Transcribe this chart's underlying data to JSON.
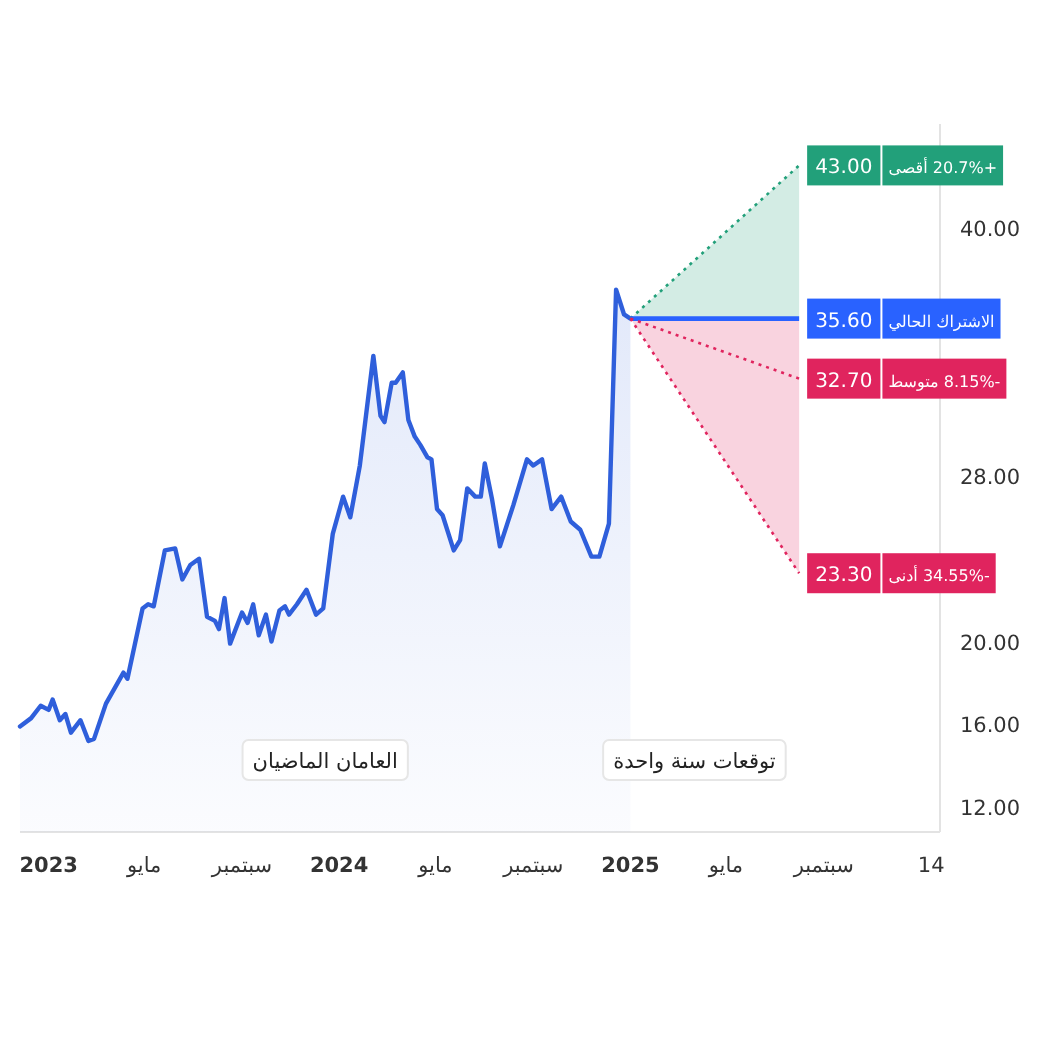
{
  "chart_data": {
    "type": "area",
    "xlim": [
      "2022-11-26",
      "2026-01-25"
    ],
    "ylim": [
      10.8,
      45
    ],
    "xticks": [
      {
        "value": "2023-01-01",
        "label": "2023"
      },
      {
        "value": "2023-05-01",
        "label": "مايو"
      },
      {
        "value": "2023-09-01",
        "label": "سبتمبر"
      },
      {
        "value": "2024-01-01",
        "label": "2024"
      },
      {
        "value": "2024-05-01",
        "label": "مايو"
      },
      {
        "value": "2024-09-01",
        "label": "سبتمبر"
      },
      {
        "value": "2025-01-01",
        "label": "2025"
      },
      {
        "value": "2025-05-01",
        "label": "مايو"
      },
      {
        "value": "2025-09-01",
        "label": "سبتمبر"
      },
      {
        "value": "2026-01-14",
        "label": "14"
      }
    ],
    "yticks": [
      {
        "value": 12,
        "label": "12.00"
      },
      {
        "value": 16,
        "label": "16.00"
      },
      {
        "value": 20,
        "label": "20.00"
      },
      {
        "value": 28,
        "label": "28.00"
      },
      {
        "value": 40,
        "label": "40.00"
      }
    ],
    "grid": false,
    "legend": "right",
    "annotations": [
      "العامان الماضيان",
      "توقعات سنة واحدة"
    ],
    "series": [
      {
        "color": "#2f5fdb",
        "x": [
          "2022-11-26",
          "2022-12-10",
          "2022-12-22",
          "2023-01-01",
          "2023-01-06",
          "2023-01-15",
          "2023-01-22",
          "2023-01-29",
          "2023-02-10",
          "2023-02-20",
          "2023-02-27",
          "2023-03-14",
          "2023-04-05",
          "2023-04-10",
          "2023-04-29",
          "2023-05-06",
          "2023-05-13",
          "2023-05-27",
          "2023-06-09",
          "2023-06-18",
          "2023-06-28",
          "2023-07-09",
          "2023-07-19",
          "2023-07-29",
          "2023-08-03",
          "2023-08-10",
          "2023-08-17",
          "2023-09-01",
          "2023-09-08",
          "2023-09-15",
          "2023-09-22",
          "2023-10-01",
          "2023-10-08",
          "2023-10-18",
          "2023-10-25",
          "2023-10-30",
          "2023-11-09",
          "2023-11-21",
          "2023-12-03",
          "2023-12-12",
          "2023-12-24",
          "2024-01-06",
          "2024-01-15",
          "2024-01-27",
          "2024-02-13",
          "2024-02-22",
          "2024-02-27",
          "2024-03-07",
          "2024-03-12",
          "2024-03-21",
          "2024-03-28",
          "2024-04-05",
          "2024-04-12",
          "2024-04-21",
          "2024-04-26",
          "2024-05-03",
          "2024-05-10",
          "2024-05-24",
          "2024-06-01",
          "2024-06-10",
          "2024-06-20",
          "2024-06-27",
          "2024-07-02",
          "2024-07-11",
          "2024-07-21",
          "2024-08-07",
          "2024-08-24",
          "2024-09-01",
          "2024-09-12",
          "2024-09-24",
          "2024-10-06",
          "2024-10-18",
          "2024-10-30",
          "2024-11-13",
          "2024-11-23",
          "2024-12-05",
          "2024-12-14",
          "2024-12-24",
          "2025-01-01"
        ],
        "values": [
          15.9,
          16.3,
          16.9,
          16.7,
          17.2,
          16.2,
          16.5,
          15.6,
          16.2,
          15.2,
          15.3,
          17.0,
          18.5,
          18.2,
          21.6,
          21.8,
          21.7,
          24.4,
          24.5,
          23.0,
          23.7,
          24.0,
          21.2,
          21.0,
          20.6,
          22.1,
          19.9,
          21.4,
          20.9,
          21.8,
          20.3,
          21.3,
          20.0,
          21.5,
          21.7,
          21.3,
          21.8,
          22.5,
          21.3,
          21.6,
          25.2,
          27.0,
          26.0,
          28.5,
          33.8,
          30.9,
          30.6,
          32.5,
          32.5,
          33.0,
          30.7,
          29.9,
          29.5,
          28.9,
          28.8,
          26.4,
          26.1,
          24.4,
          24.9,
          27.4,
          27.0,
          27.0,
          28.6,
          26.9,
          24.6,
          26.6,
          28.8,
          28.5,
          28.8,
          26.4,
          27.0,
          25.8,
          25.4,
          24.1,
          24.1,
          25.7,
          37.0,
          35.8,
          35.6
        ]
      },
      {
        "type": "line",
        "name": "+20.7% أقصى",
        "color": "#22a07a",
        "line_style": "dotted",
        "x": [
          "2025-01-01",
          "2025-08-01"
        ],
        "values": [
          35.6,
          43.0
        ],
        "lower": [
          35.6,
          35.6
        ],
        "upper": [
          35.6,
          43.0
        ],
        "value_labels": [
          null,
          "43.00"
        ]
      },
      {
        "type": "line",
        "name": "الاشتراك الحالي",
        "color": "#2962ff",
        "line_style": "solid",
        "x": [
          "2025-01-01",
          "2025-08-01"
        ],
        "values": [
          35.6,
          35.6
        ],
        "value_labels": [
          null,
          "35.60"
        ]
      },
      {
        "type": "line",
        "name": "-8.15% متوسط",
        "color": "#e0245e",
        "line_style": "dotted",
        "x": [
          "2025-01-01",
          "2025-08-01"
        ],
        "values": [
          35.6,
          32.7
        ],
        "value_labels": [
          null,
          "32.70"
        ]
      },
      {
        "type": "line",
        "name": "-34.55% أدنى",
        "color": "#e0245e",
        "line_style": "dotted",
        "x": [
          "2025-01-01",
          "2025-08-01"
        ],
        "values": [
          35.6,
          23.3
        ],
        "lower": [
          35.6,
          23.3
        ],
        "upper": [
          35.6,
          35.6
        ],
        "value_labels": [
          null,
          "23.30"
        ]
      }
    ]
  }
}
